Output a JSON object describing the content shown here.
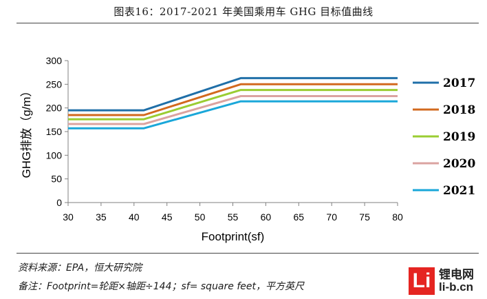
{
  "title": "图表16：2017-2021 年美国乘用车 GHG 目标值曲线",
  "chart_data": {
    "type": "line",
    "xlabel": "Footprint(sf)",
    "ylabel": "GHG排放（g/m）",
    "xlim": [
      30,
      80
    ],
    "ylim": [
      0,
      300
    ],
    "x_ticks": [
      30,
      35,
      40,
      45,
      50,
      55,
      60,
      65,
      70,
      75,
      80
    ],
    "y_ticks": [
      0,
      50,
      100,
      150,
      200,
      250,
      300
    ],
    "grid": false,
    "legend_position": "right",
    "x": [
      30,
      41.5,
      56.2,
      80
    ],
    "series": [
      {
        "name": "2017",
        "color": "#1f6fa8",
        "values": [
          195,
          195,
          263,
          263
        ]
      },
      {
        "name": "2018",
        "color": "#d2691e",
        "values": [
          185,
          185,
          250,
          250
        ]
      },
      {
        "name": "2019",
        "color": "#9acd32",
        "values": [
          176,
          176,
          238,
          238
        ]
      },
      {
        "name": "2020",
        "color": "#dba3a0",
        "values": [
          166,
          166,
          225,
          225
        ]
      },
      {
        "name": "2021",
        "color": "#1aa7d9",
        "values": [
          157,
          157,
          214,
          214
        ]
      }
    ]
  },
  "notes": {
    "source": "资料来源：EPA，恒大研究院",
    "remark": "备注：Footprint=轮距×轴距÷144；sf= square feet，平方英尺"
  },
  "watermark": {
    "logo_text": "Li",
    "name": "锂电网",
    "domain": "li-b.cn"
  }
}
